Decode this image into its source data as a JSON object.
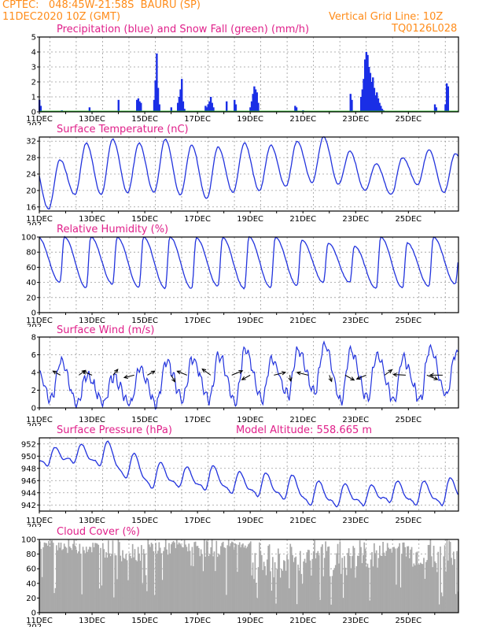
{
  "header": {
    "line1": "CPTEC:   048:45W-21:58S  BAURU (SP)",
    "line2": "11DEC2020 10Z (GMT)",
    "grid_note": "Vertical Grid Line: 10Z",
    "code": "TQ0126L028"
  },
  "colors": {
    "header": "#ff8c1a",
    "title": "#e0208a",
    "line": "#2233dd",
    "bar": "#1a2ee6",
    "snow": "#22bb22",
    "cloud": "#a9a9a9",
    "arrow": "#000000"
  },
  "x_labels": [
    "11DEC",
    "13DEC",
    "15DEC",
    "17DEC",
    "19DEC",
    "21DEC",
    "23DEC",
    "25DEC"
  ],
  "cut_label": "202",
  "chart_data": [
    {
      "type": "bar",
      "title": "Precipitation (blue) and Snow Fall (green) (mm/h)",
      "ylim": [
        0,
        5
      ],
      "yticks": [
        0,
        1,
        2,
        3,
        4,
        5
      ],
      "grid": true,
      "series": [
        {
          "name": "Precipitation",
          "x_days": [
            0.0,
            0.05,
            0.85,
            1.9,
            3.0,
            3.7,
            3.75,
            3.8,
            3.85,
            4.35,
            4.4,
            4.45,
            4.5,
            4.55,
            5.0,
            5.25,
            5.3,
            5.35,
            5.4,
            5.45,
            5.5,
            6.3,
            6.35,
            6.4,
            6.45,
            6.5,
            6.55,
            6.6,
            7.1,
            7.4,
            7.45,
            8.0,
            8.05,
            8.1,
            8.15,
            8.2,
            8.25,
            8.3,
            9.7,
            9.75,
            10.0,
            11.8,
            11.85,
            12.2,
            12.25,
            12.3,
            12.35,
            12.4,
            12.45,
            12.5,
            12.55,
            12.6,
            12.65,
            12.7,
            12.75,
            12.8,
            12.85,
            12.9,
            12.95,
            13.0,
            13.05,
            15.0,
            15.05,
            15.4,
            15.45,
            15.5
          ],
          "values": [
            0.8,
            0.4,
            0.1,
            0.3,
            0.8,
            0.8,
            0.9,
            0.7,
            0.6,
            0.8,
            2.1,
            3.9,
            1.6,
            0.5,
            0.3,
            0.6,
            1.0,
            1.5,
            2.2,
            0.7,
            0.2,
            0.4,
            0.3,
            0.5,
            0.7,
            1.0,
            0.6,
            0.3,
            0.7,
            0.8,
            0.5,
            0.3,
            0.7,
            1.2,
            1.7,
            1.5,
            1.3,
            0.6,
            0.4,
            0.3,
            0.1,
            1.2,
            0.8,
            1.0,
            1.5,
            2.2,
            3.5,
            4.0,
            3.8,
            3.0,
            2.6,
            2.0,
            2.3,
            1.6,
            1.1,
            1.3,
            0.9,
            0.6,
            0.4,
            0.2,
            0.1,
            0.5,
            0.3,
            0.5,
            1.9,
            1.7
          ]
        },
        {
          "name": "Snow Fall",
          "x_days": [],
          "values": []
        }
      ]
    },
    {
      "type": "line",
      "title": "Surface Temperature (nC)",
      "ylim": [
        15,
        33
      ],
      "yticks": [
        16,
        20,
        24,
        28,
        32
      ],
      "grid": true,
      "daily_min": [
        15.5,
        19.0,
        19.0,
        19.5,
        19.5,
        19.0,
        18.0,
        19.5,
        20.0,
        21.0,
        22.0,
        21.5,
        20.0,
        19.0,
        21.5,
        19.5
      ],
      "daily_max": [
        27.5,
        31.5,
        32.5,
        31.5,
        32.5,
        31.0,
        30.5,
        31.5,
        31.0,
        32.0,
        33.0,
        29.5,
        26.5,
        28.0,
        30.0,
        29.0
      ]
    },
    {
      "type": "line",
      "title": "Relative Humidity (%)",
      "ylim": [
        0,
        100
      ],
      "yticks": [
        0,
        20,
        40,
        60,
        80,
        100
      ],
      "grid": true,
      "daily_min": [
        40,
        33,
        38,
        33,
        32,
        32,
        35,
        32,
        33,
        36,
        40,
        40,
        32,
        33,
        35,
        38
      ],
      "daily_max": [
        100,
        100,
        100,
        100,
        100,
        99,
        99,
        100,
        100,
        96,
        92,
        88,
        100,
        92,
        100,
        82
      ]
    },
    {
      "type": "line",
      "title": "Surface Wind (m/s)",
      "ylim": [
        0,
        8
      ],
      "yticks": [
        0,
        2,
        4,
        6,
        8
      ],
      "grid": true,
      "daily_min": [
        1.0,
        0.5,
        0.5,
        0.3,
        0.5,
        1.0,
        1.0,
        0.8,
        1.0,
        1.5,
        1.8,
        0.8,
        1.2,
        1.0,
        1.0,
        1.5
      ],
      "daily_max": [
        5.2,
        3.8,
        3.6,
        4.5,
        5.2,
        5.5,
        6.0,
        6.5,
        5.5,
        6.5,
        7.2,
        6.5,
        6.0,
        5.5,
        6.8,
        6.2
      ],
      "vectors": [
        {
          "day": 0.8,
          "speed": 2.8,
          "u": -0.7,
          "v": 0.7
        },
        {
          "day": 1.5,
          "speed": 3.0,
          "u": 0.6,
          "v": 0.8
        },
        {
          "day": 2.0,
          "speed": 3.5,
          "u": -0.8,
          "v": 0.6
        },
        {
          "day": 2.8,
          "speed": 3.6,
          "u": 0.4,
          "v": 0.9
        },
        {
          "day": 3.6,
          "speed": 3.2,
          "u": -0.9,
          "v": -0.4
        },
        {
          "day": 4.1,
          "speed": 2.8,
          "u": 0.7,
          "v": 0.7
        },
        {
          "day": 5.0,
          "speed": 4.5,
          "u": 0.3,
          "v": -0.95
        },
        {
          "day": 5.6,
          "speed": 4.0,
          "u": -0.8,
          "v": 0.6
        },
        {
          "day": 6.5,
          "speed": 5.5,
          "u": -0.6,
          "v": 0.8
        },
        {
          "day": 7.3,
          "speed": 5.0,
          "u": 0.8,
          "v": 0.6
        },
        {
          "day": 8.0,
          "speed": 3.8,
          "u": -0.7,
          "v": -0.7
        },
        {
          "day": 8.9,
          "speed": 4.5,
          "u": 0.9,
          "v": 0.4
        },
        {
          "day": 9.5,
          "speed": 3.0,
          "u": 0.1,
          "v": -1.0
        },
        {
          "day": 10.2,
          "speed": 4.2,
          "u": -0.9,
          "v": 0.4
        },
        {
          "day": 11.0,
          "speed": 3.5,
          "u": 0.2,
          "v": -1.0
        },
        {
          "day": 11.6,
          "speed": 4.6,
          "u": 0.7,
          "v": -0.7
        },
        {
          "day": 12.4,
          "speed": 3.8,
          "u": -0.8,
          "v": -0.6
        },
        {
          "day": 13.1,
          "speed": 4.0,
          "u": 0.6,
          "v": 0.8
        },
        {
          "day": 13.9,
          "speed": 4.2,
          "u": -1.0,
          "v": 0.1
        },
        {
          "day": 14.7,
          "speed": 5.0,
          "u": 0.8,
          "v": -0.6
        },
        {
          "day": 15.3,
          "speed": 4.4,
          "u": -1.0,
          "v": 0.0
        }
      ]
    },
    {
      "type": "line",
      "title": "Surface Pressure (hPa)",
      "altitude_text": "Model Altitude:  558.665  m",
      "ylim": [
        941,
        953
      ],
      "yticks": [
        942,
        944,
        946,
        948,
        950,
        952
      ],
      "grid": true,
      "daily_min": [
        948.5,
        949.0,
        948.5,
        946.5,
        944.8,
        945.0,
        944.5,
        944.0,
        943.5,
        943.0,
        942.0,
        941.8,
        942.0,
        942.5,
        942.0,
        942.0
      ],
      "daily_max": [
        951.0,
        951.5,
        952.0,
        950.0,
        948.5,
        947.8,
        948.0,
        947.0,
        946.8,
        946.5,
        945.5,
        945.0,
        944.8,
        945.5,
        945.5,
        946.0
      ]
    },
    {
      "type": "area",
      "title": "Cloud Cover (%)",
      "ylim": [
        0,
        100
      ],
      "yticks": [
        0,
        20,
        40,
        60,
        80,
        100
      ],
      "grid": true,
      "daily_low": [
        85,
        80,
        75,
        70,
        78,
        82,
        76,
        86,
        40,
        30,
        65,
        45,
        55,
        75,
        60,
        55
      ],
      "daily_high": [
        100,
        100,
        100,
        98,
        100,
        100,
        100,
        100,
        96,
        100,
        100,
        100,
        100,
        98,
        100,
        100
      ]
    }
  ]
}
